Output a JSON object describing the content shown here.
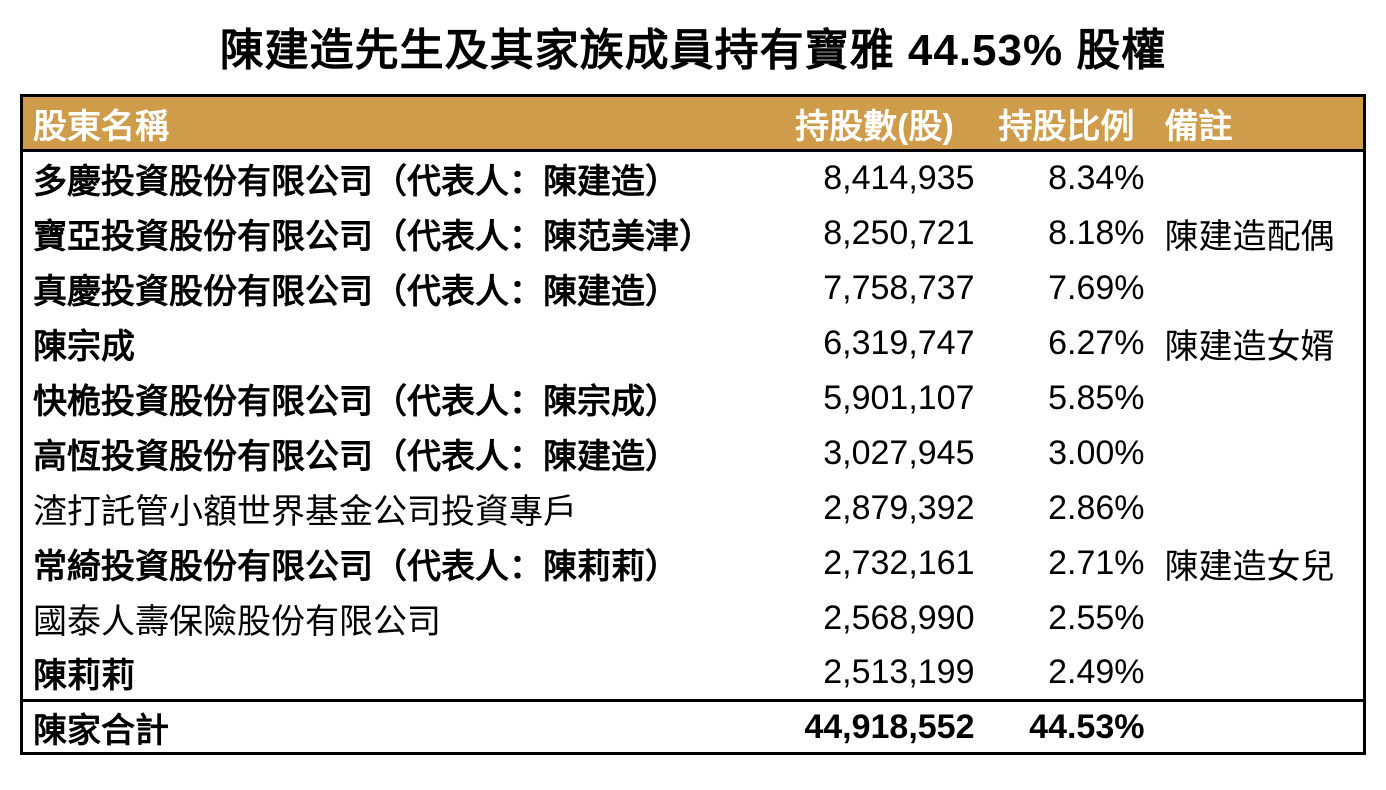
{
  "title": "陳建造先生及其家族成員持有寶雅 44.53% 股權",
  "colors": {
    "header_bg": "#CF9C4B",
    "header_text": "#FFFFFF",
    "border": "#000000",
    "body_text": "#000000"
  },
  "chart_data": {
    "type": "table",
    "title": "陳建造先生及其家族成員持有寶雅 44.53% 股權",
    "columns": [
      "股東名稱",
      "持股數(股)",
      "持股比例",
      "備註"
    ],
    "rows": [
      {
        "name": "多慶投資股份有限公司（代表人：陳建造）",
        "shares": "8,414,935",
        "pct": "8.34%",
        "note": "",
        "bold": true
      },
      {
        "name": "寶亞投資股份有限公司（代表人：陳范美津）",
        "shares": "8,250,721",
        "pct": "8.18%",
        "note": "陳建造配偶",
        "bold": true
      },
      {
        "name": "真慶投資股份有限公司（代表人：陳建造）",
        "shares": "7,758,737",
        "pct": "7.69%",
        "note": "",
        "bold": true
      },
      {
        "name": "陳宗成",
        "shares": "6,319,747",
        "pct": "6.27%",
        "note": "陳建造女婿",
        "bold": true
      },
      {
        "name": "快桅投資股份有限公司（代表人：陳宗成）",
        "shares": "5,901,107",
        "pct": "5.85%",
        "note": "",
        "bold": true
      },
      {
        "name": "高恆投資股份有限公司（代表人：陳建造）",
        "shares": "3,027,945",
        "pct": "3.00%",
        "note": "",
        "bold": true
      },
      {
        "name": "渣打託管小額世界基金公司投資專戶",
        "shares": "2,879,392",
        "pct": "2.86%",
        "note": "",
        "bold": false
      },
      {
        "name": "常綺投資股份有限公司（代表人：陳莉莉）",
        "shares": "2,732,161",
        "pct": "2.71%",
        "note": "陳建造女兒",
        "bold": true
      },
      {
        "name": "國泰人壽保險股份有限公司",
        "shares": "2,568,990",
        "pct": "2.55%",
        "note": "",
        "bold": false
      },
      {
        "name": "陳莉莉",
        "shares": "2,513,199",
        "pct": "2.49%",
        "note": "",
        "bold": true
      }
    ],
    "total": {
      "name": "陳家合計",
      "shares": "44,918,552",
      "pct": "44.53%",
      "note": ""
    }
  }
}
